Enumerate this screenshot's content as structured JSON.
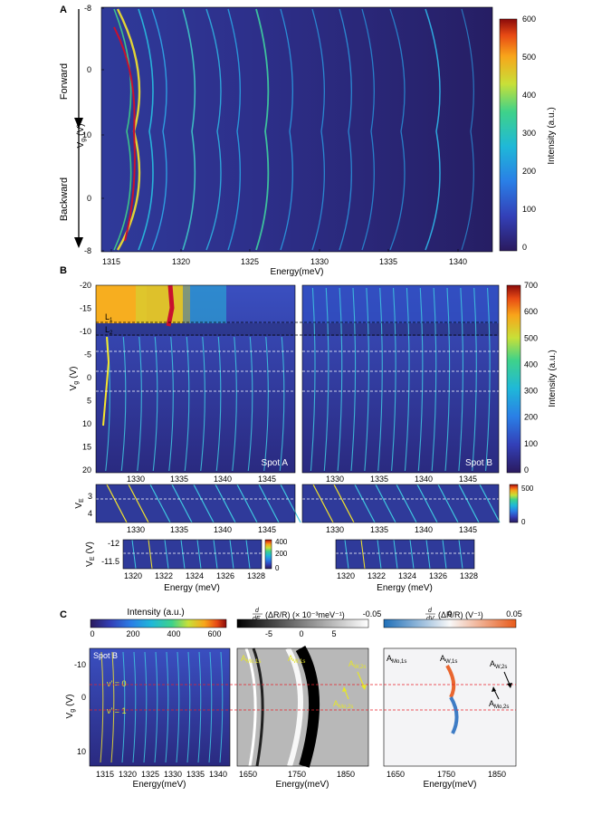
{
  "panel_a": {
    "label": "A",
    "forward_label": "Forward",
    "backward_label": "Backward",
    "ylabel_main": "V",
    "ylabel_sub": "g",
    "ylabel_unit": "(V)",
    "yticks": [
      "-8",
      "0",
      "10",
      "0",
      "-8"
    ],
    "xticks": [
      "1315",
      "1320",
      "1325",
      "1330",
      "1335",
      "1340"
    ],
    "xlabel": "Energy(meV)",
    "colorbar": {
      "label": "Intensity (a.u.)",
      "ticks": [
        "600",
        "500",
        "400",
        "300",
        "200",
        "100",
        "0"
      ]
    }
  },
  "panel_b": {
    "label": "B",
    "ylabel_main": "V",
    "ylabel_sub": "g",
    "ylabel_unit": "(V)",
    "yticks": [
      "-20",
      "-15",
      "-10",
      "-5",
      "0",
      "5",
      "10",
      "15",
      "20"
    ],
    "xticks": [
      "1330",
      "1335",
      "1340",
      "1345"
    ],
    "spot_a": "Spot A",
    "spot_b": "Spot B",
    "line_l1": "L",
    "line_l1_sub": "1",
    "line_l2": "L",
    "line_l2_sub": "2",
    "colorbar": {
      "label": "Intensity (a.u.)",
      "ticks": [
        "700",
        "600",
        "500",
        "400",
        "300",
        "200",
        "100",
        "0"
      ]
    },
    "ve_label_main": "V",
    "ve_label_sub": "E",
    "ve_label_unit": "(V)",
    "ve_yticks": [
      "3",
      "4"
    ],
    "ve_colorbar_ticks": [
      "500",
      "0"
    ],
    "zoom_yticks": [
      "-12",
      "-11.5"
    ],
    "zoom_xticks": [
      "1320",
      "1322",
      "1324",
      "1326",
      "1328"
    ],
    "zoom_xlabel": "Energy (meV)",
    "zoom_colorbar_ticks": [
      "400",
      "200",
      "0"
    ]
  },
  "panel_c": {
    "label": "C",
    "cb1_label": "Intensity (a.u.)",
    "cb1_ticks": [
      "0",
      "200",
      "400",
      "600"
    ],
    "cb2_ticks": [
      "-5",
      "0",
      "5"
    ],
    "cb3_ticks": [
      "-0.05",
      "0",
      "0.05"
    ],
    "spot": "Spot B",
    "nu0": "ν' = 0",
    "nu1": "ν' = 1",
    "ylabel_main": "V",
    "ylabel_sub": "g",
    "ylabel_unit": "(V)",
    "yticks": [
      "-10",
      "0",
      "10"
    ],
    "x1ticks": [
      "1315",
      "1320",
      "1325",
      "1330",
      "1335",
      "1340"
    ],
    "x2ticks": [
      "1650",
      "1750",
      "1850"
    ],
    "x3ticks": [
      "1650",
      "1750",
      "1850"
    ],
    "xlabel": "Energy(meV)",
    "labels": {
      "amo1s": "A",
      "amo1s_sub": "Mo,1s",
      "aw1s": "A",
      "aw1s_sub": "W,1s",
      "amo2s": "A",
      "amo2s_sub": "Mo,2s",
      "aw2s": "A",
      "aw2s_sub": "W,2s"
    }
  },
  "colors": {
    "bg_dark": "#2a1a5e",
    "trace": "#3fb8ff",
    "hot": "#c8102e",
    "dash_white": "#ffffff",
    "dash_red": "#e8202a"
  }
}
